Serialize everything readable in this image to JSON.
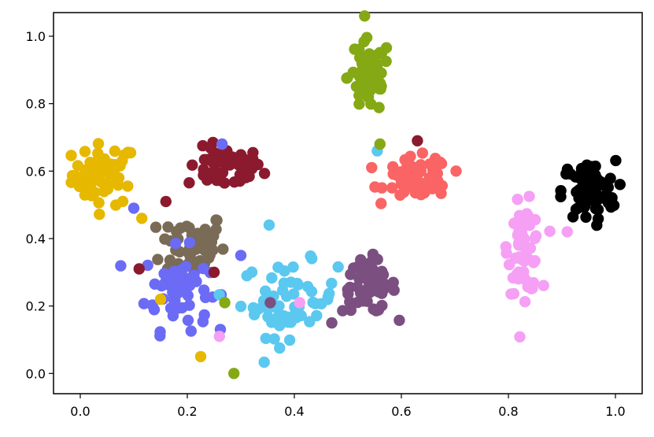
{
  "chart_data": {
    "type": "scatter",
    "title": "",
    "xlabel": "",
    "ylabel": "",
    "xlim": [
      -0.05,
      1.05
    ],
    "ylim": [
      -0.06,
      1.07
    ],
    "grid": false,
    "legend": "none",
    "x_ticks": [
      "0.0",
      "0.2",
      "0.4",
      "0.6",
      "0.8",
      "1.0"
    ],
    "y_ticks": [
      "0.0",
      "0.2",
      "0.4",
      "0.6",
      "0.8",
      "1.0"
    ],
    "clusters": [
      {
        "color": "#e6b800",
        "center": [
          0.045,
          0.59
        ],
        "spread": [
          0.03,
          0.045
        ],
        "count": 55
      },
      {
        "color": "#8b1a2e",
        "center": [
          0.27,
          0.61
        ],
        "spread": [
          0.035,
          0.03
        ],
        "count": 55
      },
      {
        "color": "#7a6b57",
        "center": [
          0.21,
          0.38
        ],
        "spread": [
          0.03,
          0.05
        ],
        "count": 60
      },
      {
        "color": "#6b6bf5",
        "center": [
          0.18,
          0.25
        ],
        "spread": [
          0.03,
          0.06
        ],
        "count": 60
      },
      {
        "color": "#5bc8f0",
        "center": [
          0.39,
          0.22
        ],
        "spread": [
          0.045,
          0.055
        ],
        "count": 60
      },
      {
        "color": "#7b4f80",
        "center": [
          0.54,
          0.26
        ],
        "spread": [
          0.025,
          0.04
        ],
        "count": 60
      },
      {
        "color": "#84a914",
        "center": [
          0.54,
          0.88
        ],
        "spread": [
          0.02,
          0.055
        ],
        "count": 60
      },
      {
        "color": "#fa6464",
        "center": [
          0.63,
          0.58
        ],
        "spread": [
          0.03,
          0.03
        ],
        "count": 70
      },
      {
        "color": "#f5a0f5",
        "center": [
          0.83,
          0.37
        ],
        "spread": [
          0.015,
          0.065
        ],
        "count": 60
      },
      {
        "color": "#000000",
        "center": [
          0.95,
          0.54
        ],
        "spread": [
          0.025,
          0.045
        ],
        "count": 75
      }
    ],
    "extra_points": [
      {
        "x": 0.287,
        "y": 0.0,
        "color": "#84a914"
      },
      {
        "x": 0.27,
        "y": 0.21,
        "color": "#84a914"
      },
      {
        "x": 0.225,
        "y": 0.05,
        "color": "#e6b800"
      },
      {
        "x": 0.15,
        "y": 0.22,
        "color": "#e6b800"
      },
      {
        "x": 0.115,
        "y": 0.46,
        "color": "#e6b800"
      },
      {
        "x": 0.26,
        "y": 0.11,
        "color": "#f5a0f5"
      },
      {
        "x": 0.41,
        "y": 0.21,
        "color": "#f5a0f5"
      },
      {
        "x": 0.91,
        "y": 0.42,
        "color": "#f5a0f5"
      },
      {
        "x": 0.555,
        "y": 0.66,
        "color": "#5bc8f0"
      },
      {
        "x": 0.353,
        "y": 0.44,
        "color": "#5bc8f0"
      },
      {
        "x": 0.56,
        "y": 0.68,
        "color": "#84a914"
      },
      {
        "x": 0.63,
        "y": 0.69,
        "color": "#8b1a2e"
      },
      {
        "x": 0.11,
        "y": 0.31,
        "color": "#8b1a2e"
      },
      {
        "x": 0.16,
        "y": 0.51,
        "color": "#8b1a2e"
      },
      {
        "x": 0.25,
        "y": 0.3,
        "color": "#8b1a2e"
      },
      {
        "x": 0.265,
        "y": 0.68,
        "color": "#6b6bf5"
      },
      {
        "x": 0.3,
        "y": 0.35,
        "color": "#6b6bf5"
      },
      {
        "x": 0.1,
        "y": 0.49,
        "color": "#6b6bf5"
      },
      {
        "x": 0.47,
        "y": 0.15,
        "color": "#7b4f80"
      },
      {
        "x": 0.355,
        "y": 0.21,
        "color": "#7b4f80"
      }
    ]
  }
}
